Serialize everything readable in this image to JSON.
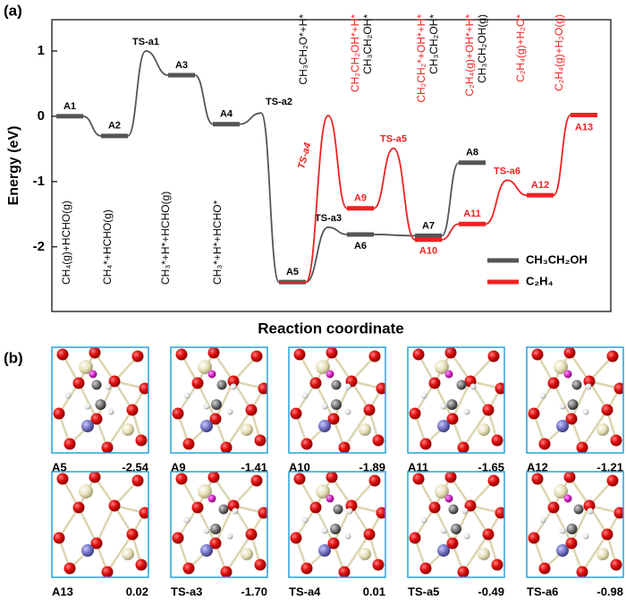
{
  "chart_data": {
    "type": "energy",
    "panel_label": "(a)",
    "ylabel": "Energy (eV)",
    "xlabel": "Reaction coordinate",
    "ylim": [
      -2.99,
      1.48
    ],
    "yticks": [
      -2,
      -1,
      0,
      1
    ],
    "legend": "bottom-right",
    "series": [
      {
        "name": "CH₃CH₂OH",
        "color": "#555555",
        "labels": [
          "A1",
          "A2",
          "TS-a1",
          "A3",
          "A4",
          "TS-a2",
          "A5",
          "TS-a3",
          "A6",
          null,
          "A7",
          "A8",
          null,
          null,
          null
        ],
        "values": [
          0,
          -0.3,
          1.0,
          0.63,
          -0.12,
          0.05,
          -2.54,
          -1.7,
          -1.81,
          null,
          -1.83,
          -0.71,
          null,
          null,
          null
        ]
      },
      {
        "name": "C₂H₄",
        "color": "#ee2222",
        "labels": [
          null,
          null,
          null,
          null,
          null,
          null,
          null,
          "TS-a4",
          "A9",
          "TS-a5",
          "A10",
          "A11",
          "TS-a6",
          "A12",
          "A13"
        ],
        "values": [
          null,
          null,
          null,
          null,
          null,
          null,
          -2.54,
          0.01,
          -1.41,
          -0.49,
          -1.89,
          -1.65,
          -0.98,
          -1.21,
          0.02
        ]
      }
    ],
    "species_labels": [
      {
        "text": "CH₄(g)+HCHO(g)",
        "color": "#000000"
      },
      {
        "text": "CH₄*+HCHO(g)",
        "color": "#000000"
      },
      {
        "text": "CH₃*+H*+HCHO(g)",
        "color": "#000000"
      },
      {
        "text": "CH₃*+H*+HCHO*",
        "color": "#000000"
      },
      {
        "text": "CH₃CH₂O*+H*",
        "color": "#000000"
      },
      {
        "text": "CH₂CH₂OH*+H*",
        "color": "#ee2222"
      },
      {
        "text": "CH₃CH₂OH*",
        "color": "#000000"
      },
      {
        "text": "CH₂CH₂*+OH*+H*",
        "color": "#ee2222"
      },
      {
        "text": "CH₃CH₂OH*",
        "color": "#000000"
      },
      {
        "text": "C₂H₄(g)+OH*+H*",
        "color": "#ee2222"
      },
      {
        "text": "CH₃CH₂OH(g)",
        "color": "#000000"
      },
      {
        "text": "C₂H₄(g)+H₂O*",
        "color": "#ee2222"
      },
      {
        "text": "C₂H₄(g)+H₂O(g)",
        "color": "#ee2222"
      }
    ]
  },
  "structures": {
    "panel_label": "(b)",
    "items": [
      {
        "name": "A5",
        "energy": "-2.54"
      },
      {
        "name": "A9",
        "energy": "-1.41"
      },
      {
        "name": "A10",
        "energy": "-1.89"
      },
      {
        "name": "A11",
        "energy": "-1.65"
      },
      {
        "name": "A12",
        "energy": "-1.21"
      },
      {
        "name": "A13",
        "energy": "0.02"
      },
      {
        "name": "TS-a3",
        "energy": "-1.70"
      },
      {
        "name": "TS-a4",
        "energy": "0.01"
      },
      {
        "name": "TS-a5",
        "energy": "-0.49"
      },
      {
        "name": "TS-a6",
        "energy": "-0.98"
      }
    ]
  }
}
